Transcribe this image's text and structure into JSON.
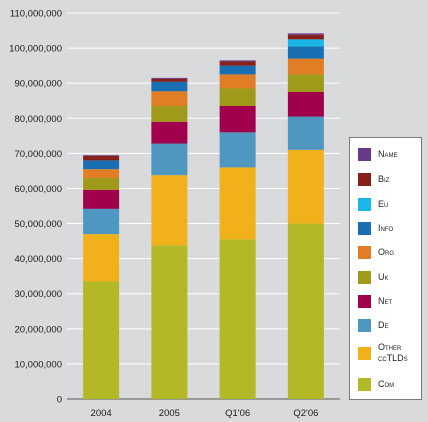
{
  "chart_data": {
    "type": "bar",
    "stacked": true,
    "categories": [
      "2004",
      "2005",
      "Q1'06",
      "Q2'06"
    ],
    "ylim": [
      0,
      110000000
    ],
    "yticks": [
      0,
      10000000,
      20000000,
      30000000,
      40000000,
      50000000,
      60000000,
      70000000,
      80000000,
      90000000,
      100000000,
      110000000
    ],
    "ytick_labels": [
      "0",
      "10,000,000",
      "20,000,000",
      "30,000,000",
      "40,000,000",
      "50,000,000",
      "60,000,000",
      "70,000,000",
      "80,000,000",
      "90,000,000",
      "100,000,000",
      "110,000,000"
    ],
    "grid": true,
    "legend_position": "right",
    "series": [
      {
        "name": "Com",
        "color": "#b2b826",
        "values": [
          33500000,
          43800000,
          45500000,
          50000000
        ]
      },
      {
        "name": "Other ccTLDs",
        "color": "#f0b11a",
        "values": [
          13500000,
          20000000,
          20500000,
          21000000
        ]
      },
      {
        "name": "De",
        "color": "#4e97c0",
        "values": [
          7200000,
          9000000,
          10000000,
          9500000
        ]
      },
      {
        "name": "Net",
        "color": "#a0004c",
        "values": [
          5400000,
          6200000,
          7500000,
          7000000
        ]
      },
      {
        "name": "Uk",
        "color": "#9f9a1a",
        "values": [
          3400000,
          4500000,
          5000000,
          5000000
        ]
      },
      {
        "name": "Org",
        "color": "#e07d25",
        "values": [
          2500000,
          4200000,
          4000000,
          4500000
        ]
      },
      {
        "name": "Info",
        "color": "#1a6fb2",
        "values": [
          2500000,
          2700000,
          2500000,
          3500000
        ]
      },
      {
        "name": "Eu",
        "color": "#1ab6e6",
        "values": [
          0,
          0,
          0,
          2000000
        ]
      },
      {
        "name": "Biz",
        "color": "#86201a",
        "values": [
          1300000,
          800000,
          1200000,
          1300000
        ]
      },
      {
        "name": "Name",
        "color": "#6a3a8a",
        "values": [
          200000,
          300000,
          300000,
          400000
        ]
      }
    ],
    "legend_order": [
      "Name",
      "Biz",
      "Eu",
      "Info",
      "Org",
      "Uk",
      "Net",
      "De",
      "Other ccTLDs",
      "Com"
    ]
  }
}
